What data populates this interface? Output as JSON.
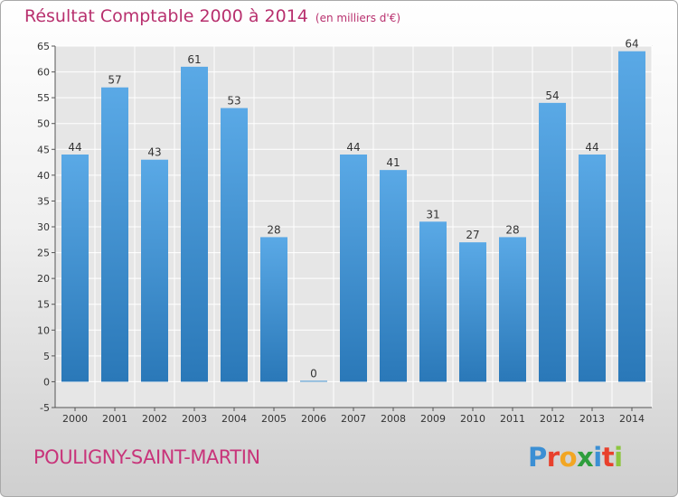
{
  "title": "Résultat Comptable 2000 à 2014",
  "unit_label": "(en milliers d'€)",
  "city": "POULIGNY-SAINT-MARTIN",
  "logo": {
    "letters": [
      "P",
      "r",
      "o",
      "x",
      "i",
      "t",
      "i"
    ],
    "colors": [
      "#3b8fd4",
      "#e8402c",
      "#f2a623",
      "#2e9e3c",
      "#3b8fd4",
      "#e8402c",
      "#8dc63f"
    ]
  },
  "chart_data": {
    "type": "bar",
    "categories": [
      "2000",
      "2001",
      "2002",
      "2003",
      "2004",
      "2005",
      "2006",
      "2007",
      "2008",
      "2009",
      "2010",
      "2011",
      "2012",
      "2013",
      "2014"
    ],
    "values": [
      44,
      57,
      43,
      61,
      53,
      28,
      0,
      44,
      41,
      31,
      27,
      28,
      54,
      44,
      64
    ],
    "data_labels": [
      "44",
      "57",
      "43",
      "61",
      "53",
      "28",
      "0",
      "44",
      "41",
      "31",
      "27",
      "28",
      "54",
      "44",
      "64"
    ],
    "ylim": [
      -5,
      65
    ],
    "yticks": [
      -5,
      0,
      5,
      10,
      15,
      20,
      25,
      30,
      35,
      40,
      45,
      50,
      55,
      60,
      65
    ],
    "grid": true,
    "bar_color_top": "#5aa9e6",
    "bar_color_bottom": "#2a78b8"
  }
}
